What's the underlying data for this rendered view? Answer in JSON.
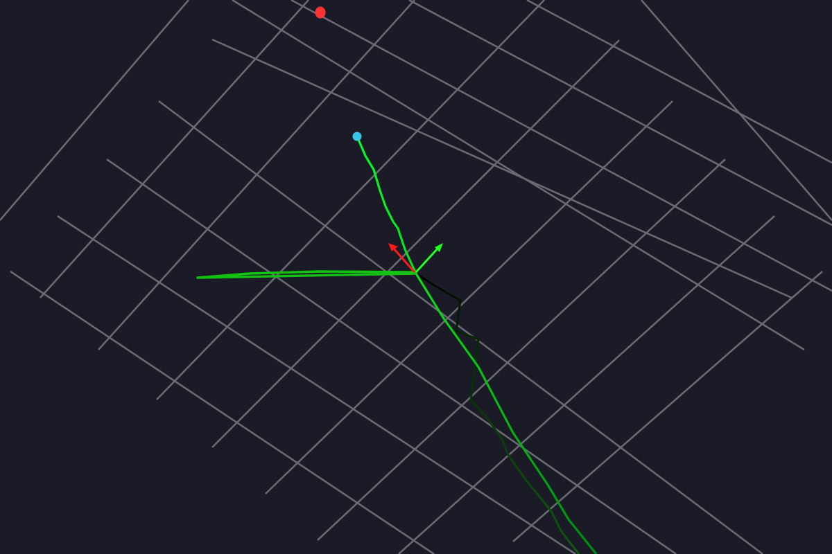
{
  "viewport": {
    "background_color": "#1b1b27",
    "grid": {
      "visible": true,
      "color": "#6a6a70"
    },
    "paths": [
      {
        "name": "trajectory-primary",
        "color_start": "#00ff2a",
        "color_end": "#008a10"
      },
      {
        "name": "trajectory-secondary",
        "color_start": "#000000",
        "color_end": "#0f5a10"
      },
      {
        "name": "trajectory-tail",
        "color": "#14c214"
      }
    ],
    "markers": [
      {
        "name": "target-marker",
        "color": "#ff3333"
      },
      {
        "name": "start-marker",
        "color": "#3cc4e8"
      }
    ],
    "axes": {
      "x_color": "#ff1a1a",
      "y_color": "#22ff22"
    }
  }
}
